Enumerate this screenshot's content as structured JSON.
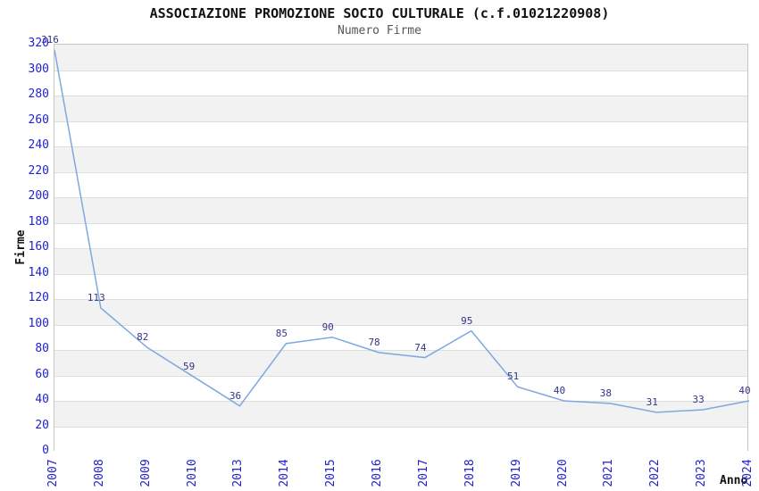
{
  "chart_data": {
    "type": "line",
    "title": "ASSOCIAZIONE PROMOZIONE SOCIO CULTURALE (c.f.01021220908)",
    "subtitle": "Numero Firme",
    "xlabel": "Anno",
    "ylabel": "Firme",
    "categories": [
      "2007",
      "2008",
      "2009",
      "2010",
      "2013",
      "2014",
      "2015",
      "2016",
      "2017",
      "2018",
      "2019",
      "2020",
      "2021",
      "2022",
      "2023",
      "2024"
    ],
    "values": [
      316,
      113,
      82,
      59,
      36,
      85,
      90,
      78,
      74,
      95,
      51,
      40,
      38,
      31,
      33,
      40
    ],
    "point_labels": [
      "316",
      "113",
      "82",
      "59",
      "36",
      "85",
      "90",
      "78",
      "74",
      "95",
      "51",
      "40",
      "38",
      "31",
      "33",
      "40"
    ],
    "ylim": [
      0,
      320
    ],
    "ytick_step": 20,
    "grid": "horizontal-alternating-bands",
    "legend": "none",
    "colors": {
      "line": "#7fa8e0",
      "point_label": "#333388",
      "tick_label": "#2222cc",
      "band_gray": "#f2f2f2",
      "band_white": "#ffffff",
      "gridline": "#dedede",
      "plot_border": "#c6c6c6",
      "title": "#111111",
      "subtitle": "#555555"
    }
  }
}
